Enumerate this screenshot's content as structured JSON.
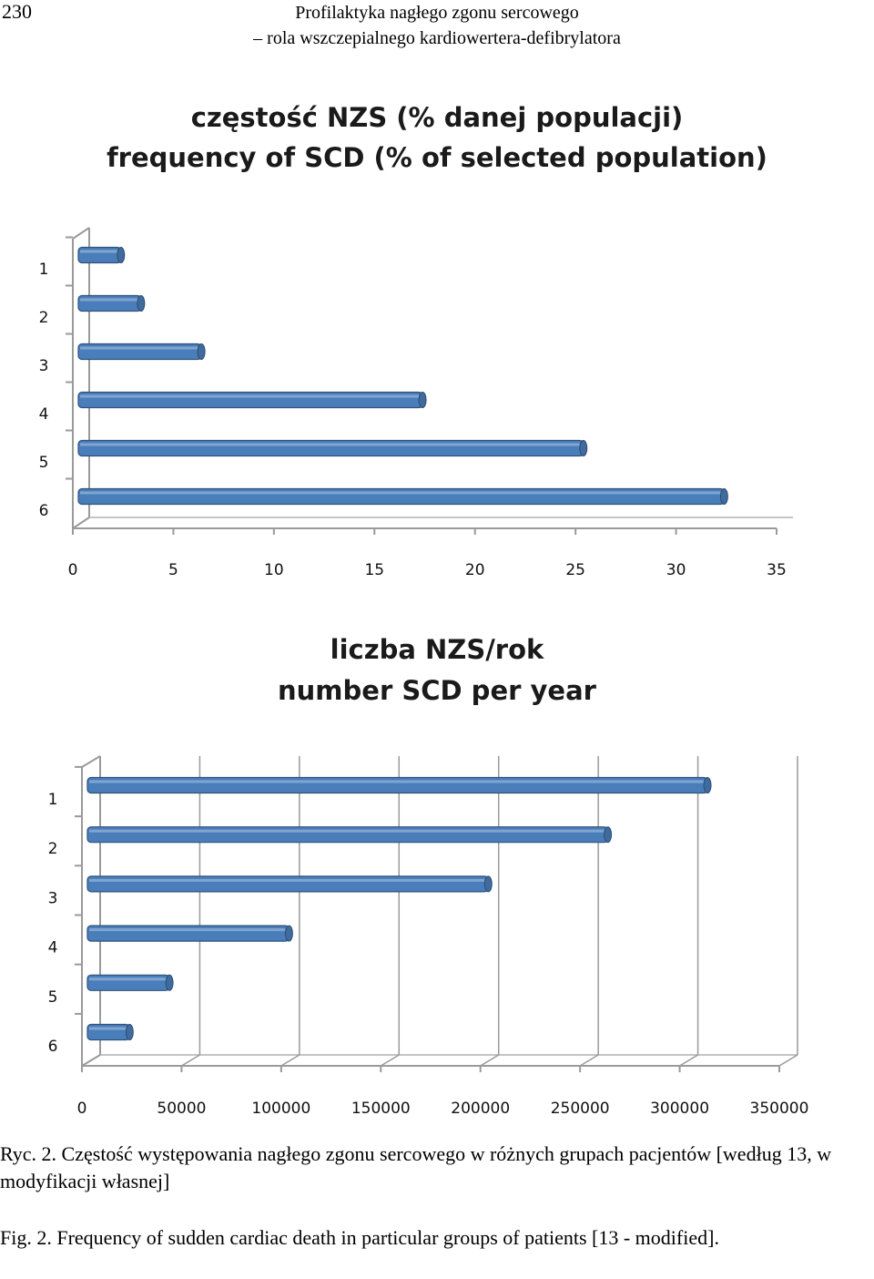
{
  "header": {
    "page_number": "230",
    "running_title_line1": "Profilaktyka nagłego zgonu sercowego",
    "running_title_line2": "– rola wszczepialnego kardiowertera-defibrylatora"
  },
  "chart_data": [
    {
      "type": "bar",
      "orientation": "horizontal",
      "title": "częstość NZS (% danej populacji)",
      "subtitle": "frequency of SCD (% of selected population)",
      "categories": [
        "1",
        "2",
        "3",
        "4",
        "5",
        "6"
      ],
      "values": [
        2.3,
        3.3,
        6.3,
        17.3,
        25.3,
        32.3
      ],
      "xlim": [
        0,
        35
      ],
      "xticks": [
        "0",
        "5",
        "10",
        "15",
        "20",
        "25",
        "30",
        "35"
      ],
      "grid": false,
      "bar_color": "#4a7ebb"
    },
    {
      "type": "bar",
      "orientation": "horizontal",
      "title": "liczba NZS/rok",
      "subtitle": "number SCD per year",
      "categories": [
        "1",
        "2",
        "3",
        "4",
        "5",
        "6"
      ],
      "values": [
        313000,
        263000,
        203000,
        103000,
        43000,
        23000
      ],
      "xlim": [
        0,
        350000
      ],
      "xticks": [
        "0",
        "50000",
        "100000",
        "150000",
        "200000",
        "250000",
        "300000",
        "350000"
      ],
      "grid": true,
      "bar_color": "#4a7ebb"
    }
  ],
  "captions": {
    "polish": "Ryc. 2. Częstość występowania nagłego zgonu sercowego w różnych grupach pacjentów [według 13, w modyfikacji własnej]",
    "english": "Fig. 2. Frequency of sudden cardiac death in particular groups of patients [13 - modified]."
  }
}
